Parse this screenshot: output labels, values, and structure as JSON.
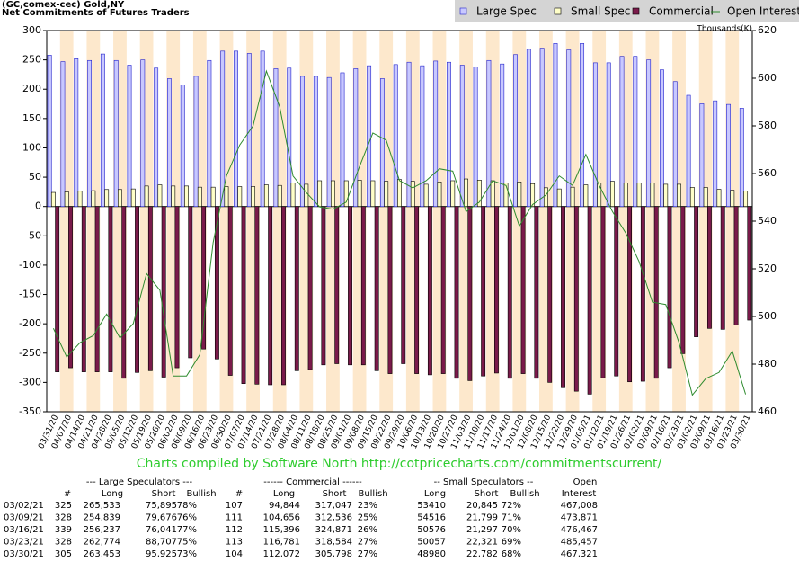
{
  "chart_data": {
    "type": "bar",
    "title": "(GC,comex-cec) Gold,NY",
    "subtitle": "Net Commitments of Futures Traders",
    "y2_label": "Thousands(K)",
    "footer": "Charts compiled by Software North  http://cotpricecharts.com/commitmentscurrent/",
    "categories": [
      "03/31/20",
      "04/07/20",
      "04/14/20",
      "04/21/20",
      "04/28/20",
      "05/05/20",
      "05/12/20",
      "05/19/20",
      "05/26/20",
      "06/02/20",
      "06/09/20",
      "06/16/20",
      "06/23/20",
      "06/30/20",
      "07/07/20",
      "07/14/20",
      "07/21/20",
      "07/28/20",
      "08/04/20",
      "08/11/20",
      "08/18/20",
      "08/25/20",
      "09/01/20",
      "09/08/20",
      "09/15/20",
      "09/22/20",
      "09/29/20",
      "10/06/20",
      "10/13/20",
      "10/20/20",
      "10/27/20",
      "11/03/20",
      "11/10/20",
      "11/17/20",
      "11/24/20",
      "12/01/20",
      "12/08/20",
      "12/15/20",
      "12/22/20",
      "12/29/20",
      "01/05/21",
      "01/12/21",
      "01/19/21",
      "01/26/21",
      "02/02/21",
      "02/09/21",
      "02/16/21",
      "02/23/21",
      "03/02/21",
      "03/09/21",
      "03/16/21",
      "03/23/21",
      "03/30/21"
    ],
    "series": [
      {
        "name": "Large Spec",
        "type": "bar",
        "color": "#c8c8ff",
        "values": [
          258,
          247,
          252,
          249,
          260,
          249,
          241,
          250,
          236,
          218,
          207,
          222,
          249,
          265,
          265,
          261,
          265,
          235,
          236,
          222,
          222,
          220,
          228,
          235,
          240,
          218,
          242,
          246,
          240,
          248,
          246,
          241,
          238,
          249,
          243,
          259,
          268,
          270,
          278,
          267,
          278,
          245,
          245,
          256,
          256,
          250,
          233,
          213,
          189.6,
          175.2,
          180.2,
          174.1,
          167.5
        ]
      },
      {
        "name": "Small Spec",
        "type": "bar",
        "color": "#ffffc8",
        "values": [
          24,
          25,
          26,
          27,
          29,
          29,
          30,
          35,
          37,
          35,
          35,
          33,
          33,
          34,
          34,
          34,
          37,
          36,
          40,
          38,
          44,
          44,
          44,
          45,
          44,
          43,
          46,
          43,
          38,
          42,
          44,
          47,
          45,
          44,
          40,
          42,
          39,
          32,
          30,
          33,
          37,
          40,
          43,
          40,
          40,
          40,
          38,
          38,
          32.6,
          32.7,
          29.3,
          27.7,
          26.2
        ]
      },
      {
        "name": "Commercial",
        "type": "bar",
        "color": "#7a1a4a",
        "values": [
          -282,
          -275,
          -282,
          -282,
          -282,
          -293,
          -283,
          -280,
          -291,
          -275,
          -258,
          -243,
          -260,
          -288,
          -302,
          -303,
          -304,
          -304,
          -280,
          -278,
          -270,
          -268,
          -270,
          -270,
          -280,
          -285,
          -268,
          -285,
          -287,
          -285,
          -293,
          -297,
          -289,
          -284,
          -293,
          -285,
          -293,
          -300,
          -309,
          -315,
          -320,
          -292,
          -289,
          -299,
          -298,
          -293,
          -275,
          -251,
          -222.2,
          -207.9,
          -209.5,
          -201.8,
          -193.7
        ]
      },
      {
        "name": "Open Interest",
        "type": "line",
        "axis": "y2",
        "color": "#2e8b2e",
        "values": [
          495,
          483,
          489,
          492,
          501,
          491,
          497,
          518,
          511,
          475,
          475,
          484,
          531,
          559,
          572,
          580,
          603,
          588,
          559,
          552,
          546,
          545,
          548,
          563,
          577,
          574,
          557,
          554,
          557,
          562,
          561,
          544,
          548,
          557,
          555,
          538,
          547,
          551,
          559,
          555,
          568,
          555,
          544,
          535,
          523,
          506,
          505,
          489,
          467.0,
          473.9,
          476.5,
          485.5,
          467.3
        ]
      }
    ],
    "ylim": [
      -350,
      300
    ],
    "yticks": [
      -350,
      -300,
      -250,
      -200,
      -150,
      -100,
      -50,
      0,
      50,
      100,
      150,
      200,
      250,
      300
    ],
    "y2lim": [
      460,
      620
    ],
    "y2ticks": [
      460,
      480,
      500,
      520,
      540,
      560,
      580,
      600,
      620
    ],
    "band_color": "#fde8cc"
  },
  "table": {
    "groups": [
      "--- Large Speculators ---",
      "------ Commercial ------",
      "-- Small Speculators --",
      "Open"
    ],
    "header": [
      "#",
      "Long",
      "Short",
      "Bullish",
      "#",
      "Long",
      "Short",
      "Bullish",
      "Long",
      "Short",
      "Bullish",
      "Interest"
    ],
    "rows": [
      [
        "03/02/21",
        "325",
        "265,533",
        "75,895",
        "78%",
        "107",
        "94,844",
        "317,047",
        "23%",
        "53410",
        "20,845",
        "72%",
        "467,008"
      ],
      [
        "03/09/21",
        "328",
        "254,839",
        "79,676",
        "76%",
        "111",
        "104,656",
        "312,536",
        "25%",
        "54516",
        "21,799",
        "71%",
        "473,871"
      ],
      [
        "03/16/21",
        "339",
        "256,237",
        "76,041",
        "77%",
        "112",
        "115,396",
        "324,871",
        "26%",
        "50576",
        "21,297",
        "70%",
        "476,467"
      ],
      [
        "03/23/21",
        "328",
        "262,774",
        "88,707",
        "75%",
        "113",
        "116,781",
        "318,584",
        "27%",
        "50057",
        "22,321",
        "69%",
        "485,457"
      ],
      [
        "03/30/21",
        "305",
        "263,453",
        "95,925",
        "73%",
        "104",
        "112,072",
        "305,798",
        "27%",
        "48980",
        "22,782",
        "68%",
        "467,321"
      ]
    ]
  }
}
